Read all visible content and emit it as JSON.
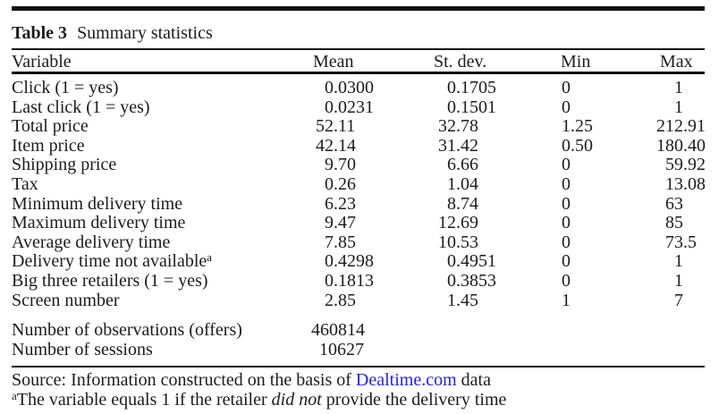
{
  "colors": {
    "text": "#1c1c1c",
    "rule": "#121212",
    "link_blue": "#2222ee"
  },
  "caption": {
    "label": "Table 3",
    "title": "Summary statistics"
  },
  "table": {
    "columns": [
      "Variable",
      "Mean",
      "St. dev.",
      "Min",
      "Max"
    ],
    "rows": [
      {
        "variable": "Click (1 = yes)",
        "sup": "",
        "mean": "0.0300",
        "stdev": "0.1705",
        "min": "0",
        "max": "1"
      },
      {
        "variable": "Last click (1 = yes)",
        "sup": "",
        "mean": "0.0231",
        "stdev": "0.1501",
        "min": "0",
        "max": "1"
      },
      {
        "variable": "Total price",
        "sup": "",
        "mean": "52.11",
        "stdev": "32.78",
        "min": "1.25",
        "max": "212.91"
      },
      {
        "variable": "Item price",
        "sup": "",
        "mean": "42.14",
        "stdev": "31.42",
        "min": "0.50",
        "max": "180.40"
      },
      {
        "variable": "Shipping price",
        "sup": "",
        "mean": "9.70",
        "stdev": "6.66",
        "min": "0",
        "max": "59.92"
      },
      {
        "variable": "Tax",
        "sup": "",
        "mean": "0.26",
        "stdev": "1.04",
        "min": "0",
        "max": "13.08"
      },
      {
        "variable": "Minimum delivery time",
        "sup": "",
        "mean": "6.23",
        "stdev": "8.74",
        "min": "0",
        "max": "63"
      },
      {
        "variable": "Maximum delivery time",
        "sup": "",
        "mean": "9.47",
        "stdev": "12.69",
        "min": "0",
        "max": "85"
      },
      {
        "variable": "Average delivery time",
        "sup": "",
        "mean": "7.85",
        "stdev": "10.53",
        "min": "0",
        "max": "73.5"
      },
      {
        "variable": "Delivery time not available",
        "sup": "a",
        "mean": "0.4298",
        "stdev": "0.4951",
        "min": "0",
        "max": "1"
      },
      {
        "variable": "Big three retailers (1 = yes)",
        "sup": "",
        "mean": "0.1813",
        "stdev": "0.3853",
        "min": "0",
        "max": "1"
      },
      {
        "variable": "Screen number",
        "sup": "",
        "mean": "2.85",
        "stdev": "1.45",
        "min": "1",
        "max": "7"
      }
    ],
    "summary_rows": [
      {
        "label": "Number of observations (offers)",
        "value": "460814"
      },
      {
        "label": "Number of sessions",
        "value": "10627"
      }
    ]
  },
  "footer": {
    "source_prefix": "Source: Information constructed on the basis of ",
    "source_link": "Dealtime.com",
    "source_suffix": " data",
    "footnote_sup": "a",
    "footnote_pre": "The variable equals 1 if the retailer ",
    "footnote_em": "did not",
    "footnote_post": " provide the delivery time"
  }
}
